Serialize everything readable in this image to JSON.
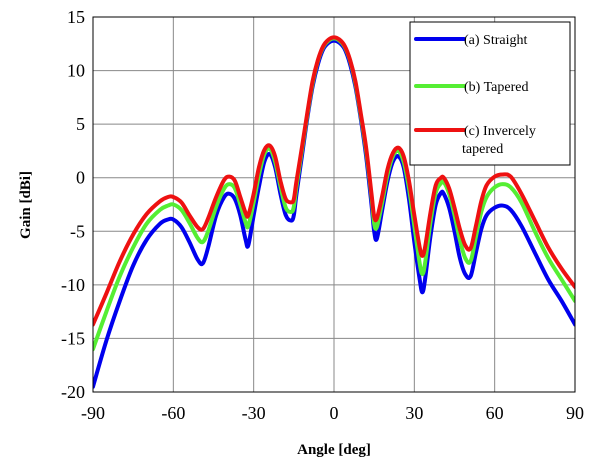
{
  "chart_data": {
    "type": "line",
    "xlabel": "Angle [deg]",
    "ylabel": "Gain [dBi]",
    "xlim": [
      -90,
      90
    ],
    "ylim": [
      -20,
      15
    ],
    "xticks": [
      -90,
      -60,
      -30,
      0,
      30,
      60,
      90
    ],
    "yticks": [
      -20,
      -15,
      -10,
      -5,
      0,
      5,
      10,
      15
    ],
    "grid": true,
    "legend_position": "top-right",
    "series": [
      {
        "name": "(a) Straight",
        "color": "#0000ee",
        "x": [
          -90,
          -85,
          -80,
          -75,
          -70,
          -65,
          -62,
          -60,
          -57,
          -54,
          -51,
          -49,
          -47,
          -44,
          -41,
          -39,
          -37,
          -35,
          -33,
          -32,
          -30,
          -28,
          -26,
          -24,
          -22,
          -20,
          -18,
          -16,
          -15,
          -14,
          -12,
          -10,
          -8,
          -6,
          -4,
          -2,
          0,
          2,
          4,
          6,
          8,
          10,
          12,
          14,
          15,
          16,
          18,
          20,
          22,
          24,
          26,
          28,
          30,
          32,
          33,
          34,
          36,
          38,
          40,
          41,
          43,
          45,
          47,
          49,
          51,
          53,
          55,
          57,
          60,
          63,
          66,
          70,
          75,
          80,
          85,
          90
        ],
        "values": [
          -19.5,
          -15.2,
          -11.5,
          -8.2,
          -5.8,
          -4.3,
          -3.9,
          -3.9,
          -4.6,
          -6.0,
          -7.6,
          -8.0,
          -6.5,
          -3.5,
          -1.8,
          -1.5,
          -2.0,
          -3.5,
          -5.8,
          -6.3,
          -3.5,
          -0.8,
          1.5,
          2.2,
          1.0,
          -1.5,
          -3.5,
          -4.0,
          -3.5,
          -1.5,
          2.0,
          5.5,
          8.5,
          10.6,
          12.0,
          12.6,
          12.8,
          12.6,
          12.0,
          10.6,
          8.5,
          5.5,
          2.0,
          -2.5,
          -5.0,
          -5.7,
          -3.0,
          -0.3,
          1.5,
          2.0,
          1.0,
          -2.0,
          -6.0,
          -9.5,
          -10.7,
          -9.5,
          -5.5,
          -2.5,
          -1.4,
          -1.5,
          -2.8,
          -5.0,
          -7.5,
          -9.0,
          -9.2,
          -7.0,
          -4.8,
          -3.5,
          -2.8,
          -2.6,
          -3.0,
          -4.5,
          -7.0,
          -9.5,
          -11.5,
          -13.7
        ]
      },
      {
        "name": "(b) Tapered",
        "color": "#55ee33",
        "x": [
          -90,
          -85,
          -80,
          -75,
          -70,
          -65,
          -62,
          -60,
          -57,
          -54,
          -51,
          -49,
          -47,
          -44,
          -41,
          -39,
          -37,
          -35,
          -33,
          -32,
          -30,
          -28,
          -26,
          -24,
          -22,
          -20,
          -18,
          -16,
          -15,
          -14,
          -12,
          -10,
          -8,
          -6,
          -4,
          -2,
          0,
          2,
          4,
          6,
          8,
          10,
          12,
          14,
          15,
          16,
          18,
          20,
          22,
          24,
          26,
          28,
          30,
          32,
          33,
          34,
          36,
          38,
          40,
          41,
          43,
          45,
          47,
          49,
          51,
          53,
          55,
          57,
          60,
          63,
          66,
          70,
          75,
          80,
          85,
          90
        ],
        "values": [
          -16.0,
          -12.5,
          -9.2,
          -6.5,
          -4.3,
          -3.0,
          -2.6,
          -2.5,
          -3.0,
          -4.2,
          -5.6,
          -6.0,
          -5.0,
          -2.7,
          -1.0,
          -0.6,
          -1.0,
          -2.5,
          -4.2,
          -4.5,
          -2.3,
          0.3,
          2.2,
          2.7,
          1.5,
          -0.8,
          -2.8,
          -3.2,
          -2.7,
          -0.8,
          2.5,
          5.8,
          8.8,
          10.9,
          12.2,
          12.8,
          13.0,
          12.8,
          12.2,
          10.9,
          8.8,
          5.8,
          2.5,
          -1.8,
          -4.3,
          -4.6,
          -2.3,
          0.3,
          2.0,
          2.5,
          1.5,
          -1.0,
          -4.5,
          -8.0,
          -9.0,
          -8.0,
          -4.2,
          -1.4,
          -0.5,
          -0.4,
          -1.5,
          -3.5,
          -5.8,
          -7.5,
          -7.8,
          -5.5,
          -3.2,
          -1.8,
          -0.9,
          -0.6,
          -0.9,
          -2.3,
          -5.0,
          -7.5,
          -9.5,
          -11.5
        ]
      },
      {
        "name": "(c) Invercely tapered",
        "color": "#ee1111",
        "x": [
          -90,
          -85,
          -80,
          -75,
          -70,
          -65,
          -62,
          -60,
          -57,
          -54,
          -51,
          -49,
          -47,
          -44,
          -41,
          -39,
          -37,
          -35,
          -33,
          -32,
          -30,
          -28,
          -26,
          -24,
          -22,
          -20,
          -18,
          -16,
          -15,
          -14,
          -12,
          -10,
          -8,
          -6,
          -4,
          -2,
          0,
          2,
          4,
          6,
          8,
          10,
          12,
          14,
          15,
          16,
          18,
          20,
          22,
          24,
          26,
          28,
          30,
          32,
          33,
          34,
          36,
          38,
          40,
          41,
          43,
          45,
          47,
          49,
          51,
          53,
          55,
          57,
          60,
          63,
          66,
          70,
          75,
          80,
          85,
          90
        ],
        "values": [
          -13.7,
          -10.8,
          -7.8,
          -5.3,
          -3.4,
          -2.2,
          -1.8,
          -1.8,
          -2.3,
          -3.5,
          -4.6,
          -4.8,
          -3.8,
          -1.8,
          -0.2,
          0.1,
          -0.3,
          -1.8,
          -3.3,
          -3.5,
          -1.5,
          1.0,
          2.6,
          3.0,
          2.0,
          -0.3,
          -2.0,
          -2.3,
          -2.0,
          -0.3,
          2.8,
          6.0,
          9.0,
          11.0,
          12.3,
          12.9,
          13.1,
          12.9,
          12.3,
          11.0,
          9.0,
          6.0,
          2.8,
          -1.5,
          -3.6,
          -3.8,
          -1.7,
          0.8,
          2.3,
          2.8,
          2.0,
          -0.3,
          -3.5,
          -6.5,
          -7.3,
          -6.5,
          -3.3,
          -0.7,
          0.0,
          0.0,
          -1.0,
          -2.8,
          -4.8,
          -6.3,
          -6.6,
          -4.5,
          -2.2,
          -0.7,
          0.1,
          0.3,
          0.1,
          -1.5,
          -4.0,
          -6.5,
          -8.5,
          -10.2
        ]
      }
    ]
  }
}
